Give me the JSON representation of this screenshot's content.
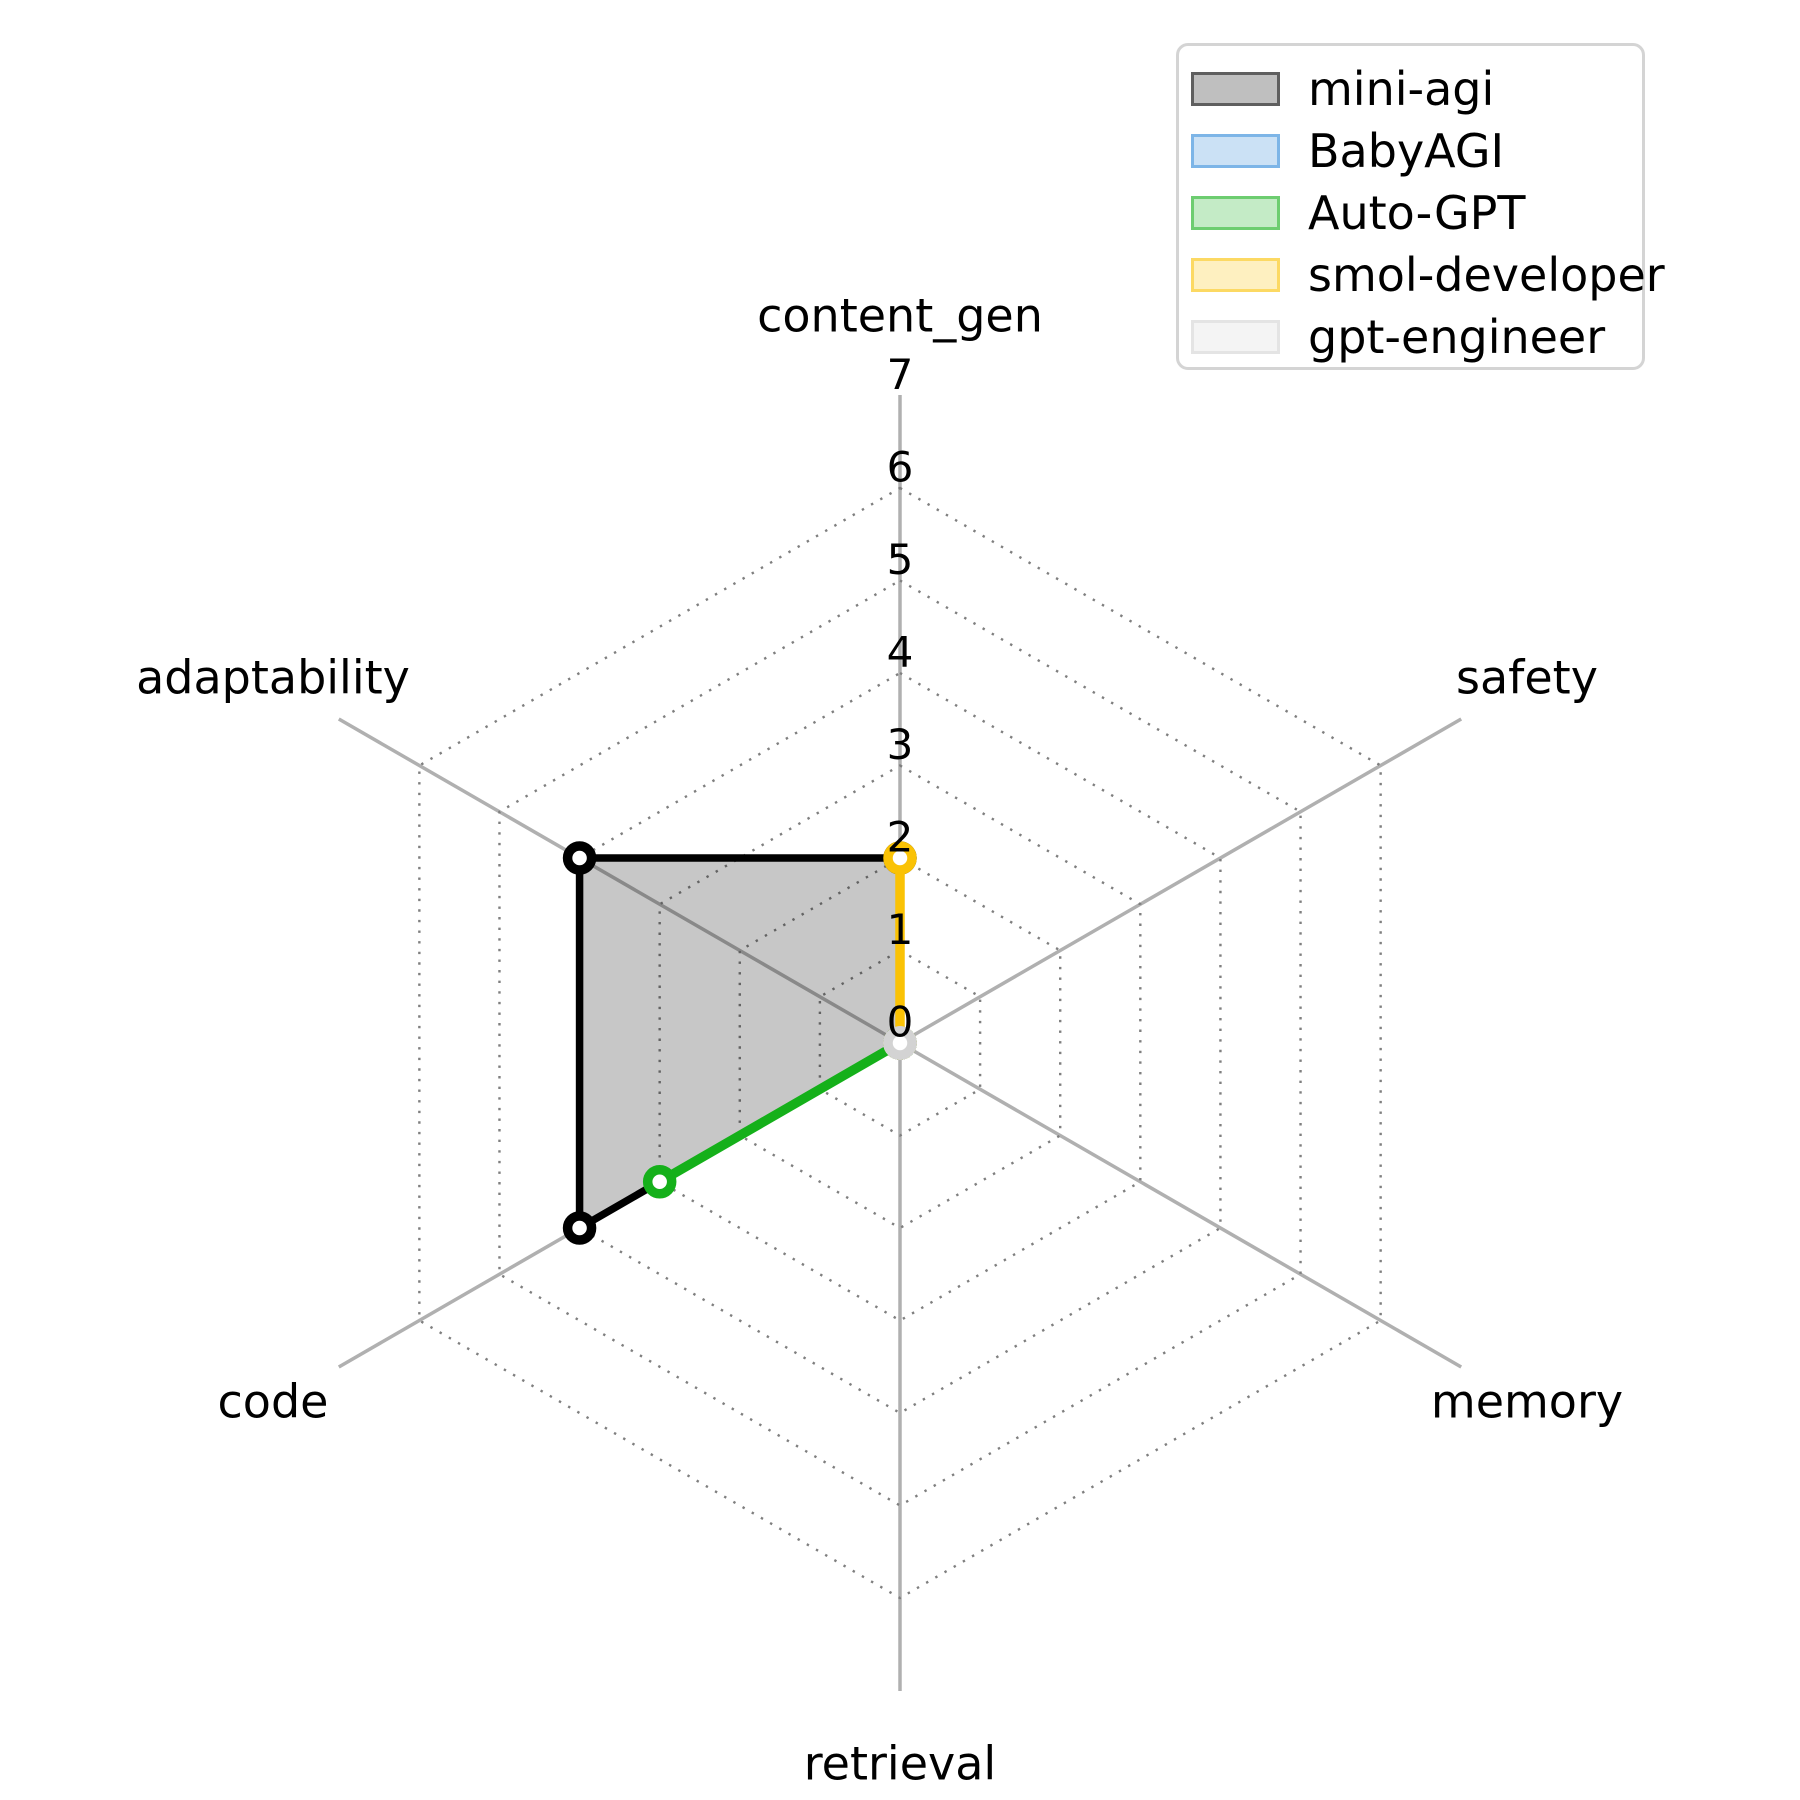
{
  "chart_data": {
    "type": "radar",
    "categories": [
      "content_gen",
      "safety",
      "memory",
      "retrieval",
      "code",
      "adaptability"
    ],
    "axis_range": [
      0,
      7
    ],
    "tick_labels": [
      "0",
      "1",
      "2",
      "3",
      "4",
      "5",
      "6",
      "7"
    ],
    "grid_rings": [
      1,
      2,
      3,
      4,
      5,
      6
    ],
    "grid_style": "dotted",
    "legend_position": "upper-right",
    "series": [
      {
        "name": "mini-agi",
        "color": "#000000",
        "values": [
          2,
          0,
          0,
          0,
          4,
          4
        ]
      },
      {
        "name": "BabyAGI",
        "color": "#2f89d9",
        "values": [
          0,
          0,
          0,
          0,
          0,
          0
        ]
      },
      {
        "name": "Auto-GPT",
        "color": "#15b01a",
        "values": [
          0,
          0,
          0,
          0,
          3,
          0
        ]
      },
      {
        "name": "smol-developer",
        "color": "#fac205",
        "values": [
          2,
          0,
          0,
          0,
          0,
          0
        ]
      },
      {
        "name": "gpt-engineer",
        "color": "#d3d3d3",
        "values": [
          0,
          0,
          0,
          0,
          0,
          0
        ]
      }
    ],
    "style_colors": {
      "spoke": "#b0b0b0",
      "grid_dot": "#7f7f7f",
      "tick_text": "#000000",
      "label_text": "#000000",
      "legend_border": "#d4d4d4",
      "background": "#ffffff"
    }
  }
}
